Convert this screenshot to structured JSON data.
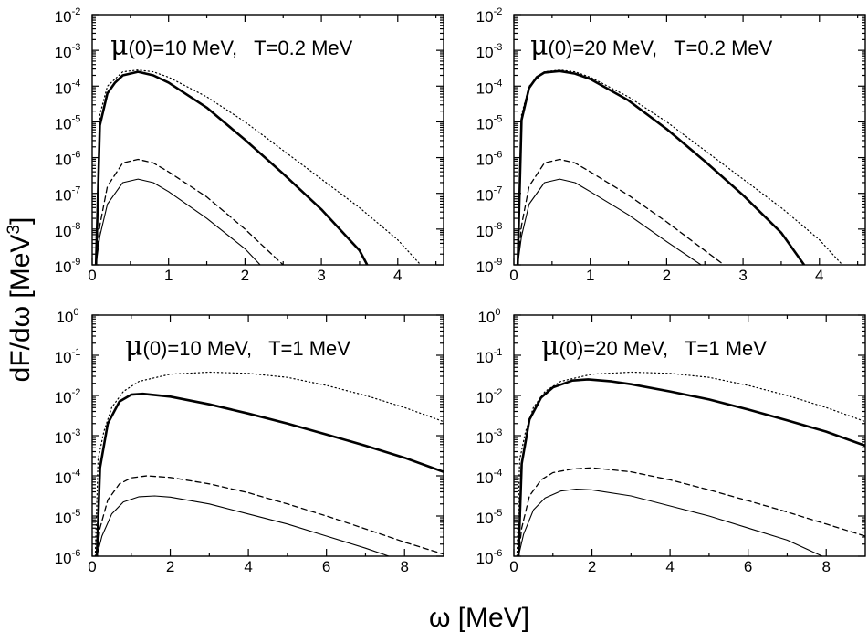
{
  "figure": {
    "ylabel_text": "dF/dω [MeV",
    "ylabel_exp": "3",
    "ylabel_close": "]",
    "xlabel_text": "ω [MeV]"
  },
  "chart_data": [
    {
      "type": "line",
      "id": "top-left",
      "title_mu": "μ",
      "title_rest": "(0)=10 MeV,   T=0.2 MeV",
      "yscale": "log",
      "xlim": [
        0,
        4.6
      ],
      "ylim_exp": [
        -9,
        -2
      ],
      "x_ticks": [
        "0",
        "1",
        "2",
        "3",
        "4"
      ],
      "y_ticks": [
        {
          "base": "10",
          "exp": "-9"
        },
        {
          "base": "10",
          "exp": "-8"
        },
        {
          "base": "10",
          "exp": "-7"
        },
        {
          "base": "10",
          "exp": "-6"
        },
        {
          "base": "10",
          "exp": "-5"
        },
        {
          "base": "10",
          "exp": "-4"
        },
        {
          "base": "10",
          "exp": "-3"
        },
        {
          "base": "10",
          "exp": "-2"
        }
      ],
      "series": [
        {
          "name": "dotted",
          "style": "dotted",
          "points": [
            [
              0.05,
              -9
            ],
            [
              0.1,
              -4.8
            ],
            [
              0.2,
              -4.0
            ],
            [
              0.4,
              -3.6
            ],
            [
              0.6,
              -3.55
            ],
            [
              0.8,
              -3.6
            ],
            [
              1.0,
              -3.75
            ],
            [
              1.5,
              -4.3
            ],
            [
              2.0,
              -5.0
            ],
            [
              2.5,
              -5.8
            ],
            [
              3.0,
              -6.6
            ],
            [
              3.5,
              -7.4
            ],
            [
              4.0,
              -8.3
            ],
            [
              4.3,
              -9.0
            ]
          ]
        },
        {
          "name": "thick",
          "style": "thick",
          "points": [
            [
              0.05,
              -9
            ],
            [
              0.1,
              -5.1
            ],
            [
              0.2,
              -4.2
            ],
            [
              0.3,
              -3.9
            ],
            [
              0.4,
              -3.7
            ],
            [
              0.6,
              -3.6
            ],
            [
              0.8,
              -3.7
            ],
            [
              1.0,
              -3.9
            ],
            [
              1.5,
              -4.6
            ],
            [
              2.0,
              -5.5
            ],
            [
              2.5,
              -6.45
            ],
            [
              3.0,
              -7.45
            ],
            [
              3.5,
              -8.6
            ],
            [
              3.6,
              -9.0
            ]
          ]
        },
        {
          "name": "dashed",
          "style": "dashed",
          "points": [
            [
              0.05,
              -9
            ],
            [
              0.1,
              -7.9
            ],
            [
              0.2,
              -6.8
            ],
            [
              0.4,
              -6.15
            ],
            [
              0.6,
              -6.05
            ],
            [
              0.8,
              -6.15
            ],
            [
              1.0,
              -6.4
            ],
            [
              1.5,
              -7.1
            ],
            [
              2.0,
              -8.0
            ],
            [
              2.5,
              -9.0
            ]
          ]
        },
        {
          "name": "thin",
          "style": "thin",
          "points": [
            [
              0.05,
              -9
            ],
            [
              0.1,
              -8.2
            ],
            [
              0.2,
              -7.3
            ],
            [
              0.4,
              -6.7
            ],
            [
              0.6,
              -6.6
            ],
            [
              0.8,
              -6.7
            ],
            [
              1.0,
              -6.95
            ],
            [
              1.5,
              -7.7
            ],
            [
              2.0,
              -8.55
            ],
            [
              2.2,
              -9.0
            ]
          ]
        }
      ]
    },
    {
      "type": "line",
      "id": "top-right",
      "title_mu": "μ",
      "title_rest": "(0)=20 MeV,   T=0.2 MeV",
      "yscale": "log",
      "xlim": [
        0,
        4.6
      ],
      "ylim_exp": [
        -9,
        -2
      ],
      "x_ticks": [
        "0",
        "1",
        "2",
        "3",
        "4"
      ],
      "y_ticks": [
        {
          "base": "10",
          "exp": "-9"
        },
        {
          "base": "10",
          "exp": "-8"
        },
        {
          "base": "10",
          "exp": "-7"
        },
        {
          "base": "10",
          "exp": "-6"
        },
        {
          "base": "10",
          "exp": "-5"
        },
        {
          "base": "10",
          "exp": "-4"
        },
        {
          "base": "10",
          "exp": "-3"
        },
        {
          "base": "10",
          "exp": "-2"
        }
      ],
      "series": [
        {
          "name": "dotted",
          "style": "dotted",
          "points": [
            [
              0.05,
              -9
            ],
            [
              0.1,
              -4.8
            ],
            [
              0.2,
              -4.0
            ],
            [
              0.4,
              -3.6
            ],
            [
              0.6,
              -3.55
            ],
            [
              0.8,
              -3.6
            ],
            [
              1.0,
              -3.75
            ],
            [
              1.5,
              -4.3
            ],
            [
              2.0,
              -5.0
            ],
            [
              2.5,
              -5.8
            ],
            [
              3.0,
              -6.6
            ],
            [
              3.5,
              -7.4
            ],
            [
              4.0,
              -8.3
            ],
            [
              4.3,
              -9.0
            ]
          ]
        },
        {
          "name": "thick",
          "style": "thick",
          "points": [
            [
              0.05,
              -9
            ],
            [
              0.1,
              -4.95
            ],
            [
              0.2,
              -4.05
            ],
            [
              0.3,
              -3.75
            ],
            [
              0.4,
              -3.62
            ],
            [
              0.6,
              -3.58
            ],
            [
              0.8,
              -3.65
            ],
            [
              1.0,
              -3.8
            ],
            [
              1.5,
              -4.4
            ],
            [
              2.0,
              -5.2
            ],
            [
              2.5,
              -6.1
            ],
            [
              3.0,
              -7.05
            ],
            [
              3.5,
              -8.1
            ],
            [
              3.8,
              -9.0
            ]
          ]
        },
        {
          "name": "dashed",
          "style": "dashed",
          "points": [
            [
              0.05,
              -9
            ],
            [
              0.1,
              -7.9
            ],
            [
              0.2,
              -6.8
            ],
            [
              0.4,
              -6.15
            ],
            [
              0.6,
              -6.05
            ],
            [
              0.8,
              -6.15
            ],
            [
              1.0,
              -6.4
            ],
            [
              1.5,
              -7.05
            ],
            [
              2.0,
              -7.8
            ],
            [
              2.5,
              -8.6
            ],
            [
              2.75,
              -9.0
            ]
          ]
        },
        {
          "name": "thin",
          "style": "thin",
          "points": [
            [
              0.05,
              -9
            ],
            [
              0.1,
              -8.2
            ],
            [
              0.2,
              -7.3
            ],
            [
              0.4,
              -6.7
            ],
            [
              0.6,
              -6.6
            ],
            [
              0.8,
              -6.7
            ],
            [
              1.0,
              -6.95
            ],
            [
              1.5,
              -7.6
            ],
            [
              2.0,
              -8.35
            ],
            [
              2.45,
              -9.0
            ]
          ]
        }
      ]
    },
    {
      "type": "line",
      "id": "bottom-left",
      "title_mu": "μ",
      "title_rest": "(0)=10 MeV,   T=1 MeV",
      "yscale": "log",
      "xlim": [
        0,
        9
      ],
      "ylim_exp": [
        -6,
        0
      ],
      "x_ticks": [
        "0",
        "2",
        "4",
        "6",
        "8"
      ],
      "y_ticks": [
        {
          "base": "10",
          "exp": "-6"
        },
        {
          "base": "10",
          "exp": "-5"
        },
        {
          "base": "10",
          "exp": "-4"
        },
        {
          "base": "10",
          "exp": "-3"
        },
        {
          "base": "10",
          "exp": "-2"
        },
        {
          "base": "10",
          "exp": "-1"
        },
        {
          "base": "10",
          "exp": "0"
        }
      ],
      "series": [
        {
          "name": "dotted",
          "style": "dotted",
          "points": [
            [
              0.08,
              -6
            ],
            [
              0.15,
              -3.6
            ],
            [
              0.3,
              -2.9
            ],
            [
              0.5,
              -2.3
            ],
            [
              0.8,
              -1.9
            ],
            [
              1.2,
              -1.65
            ],
            [
              2.0,
              -1.47
            ],
            [
              3.0,
              -1.42
            ],
            [
              4.0,
              -1.45
            ],
            [
              5.0,
              -1.55
            ],
            [
              6.0,
              -1.75
            ],
            [
              7.0,
              -2.0
            ],
            [
              8.0,
              -2.3
            ],
            [
              9.0,
              -2.65
            ]
          ]
        },
        {
          "name": "thick",
          "style": "thick",
          "points": [
            [
              0.12,
              -6
            ],
            [
              0.2,
              -3.8
            ],
            [
              0.4,
              -2.7
            ],
            [
              0.7,
              -2.15
            ],
            [
              1.0,
              -1.98
            ],
            [
              1.3,
              -1.96
            ],
            [
              2.0,
              -2.03
            ],
            [
              3.0,
              -2.22
            ],
            [
              4.0,
              -2.45
            ],
            [
              5.0,
              -2.7
            ],
            [
              6.0,
              -2.97
            ],
            [
              7.0,
              -3.25
            ],
            [
              8.0,
              -3.55
            ],
            [
              9.0,
              -3.9
            ]
          ]
        },
        {
          "name": "dashed",
          "style": "dashed",
          "points": [
            [
              0.12,
              -6
            ],
            [
              0.2,
              -5.3
            ],
            [
              0.4,
              -4.6
            ],
            [
              0.7,
              -4.2
            ],
            [
              1.0,
              -4.05
            ],
            [
              1.4,
              -4.0
            ],
            [
              2.0,
              -4.04
            ],
            [
              3.0,
              -4.2
            ],
            [
              4.0,
              -4.42
            ],
            [
              5.0,
              -4.7
            ],
            [
              6.0,
              -5.0
            ],
            [
              7.0,
              -5.32
            ],
            [
              8.0,
              -5.65
            ],
            [
              9.0,
              -5.95
            ]
          ]
        },
        {
          "name": "thin",
          "style": "thin",
          "points": [
            [
              0.12,
              -6
            ],
            [
              0.25,
              -5.5
            ],
            [
              0.5,
              -4.95
            ],
            [
              0.8,
              -4.65
            ],
            [
              1.2,
              -4.52
            ],
            [
              1.6,
              -4.5
            ],
            [
              2.0,
              -4.53
            ],
            [
              3.0,
              -4.7
            ],
            [
              4.0,
              -4.95
            ],
            [
              5.0,
              -5.2
            ],
            [
              6.0,
              -5.5
            ],
            [
              7.0,
              -5.8
            ],
            [
              7.6,
              -6.0
            ]
          ]
        }
      ]
    },
    {
      "type": "line",
      "id": "bottom-right",
      "title_mu": "μ",
      "title_rest": "(0)=20 MeV,   T=1 MeV",
      "yscale": "log",
      "xlim": [
        0,
        9
      ],
      "ylim_exp": [
        -6,
        0
      ],
      "x_ticks": [
        "0",
        "2",
        "4",
        "6",
        "8"
      ],
      "y_ticks": [
        {
          "base": "10",
          "exp": "-6"
        },
        {
          "base": "10",
          "exp": "-5"
        },
        {
          "base": "10",
          "exp": "-4"
        },
        {
          "base": "10",
          "exp": "-3"
        },
        {
          "base": "10",
          "exp": "-2"
        },
        {
          "base": "10",
          "exp": "-1"
        },
        {
          "base": "10",
          "exp": "0"
        }
      ],
      "series": [
        {
          "name": "dotted",
          "style": "dotted",
          "points": [
            [
              0.08,
              -6
            ],
            [
              0.15,
              -3.6
            ],
            [
              0.3,
              -2.9
            ],
            [
              0.5,
              -2.3
            ],
            [
              0.8,
              -1.9
            ],
            [
              1.2,
              -1.65
            ],
            [
              2.0,
              -1.47
            ],
            [
              3.0,
              -1.42
            ],
            [
              4.0,
              -1.45
            ],
            [
              5.0,
              -1.55
            ],
            [
              6.0,
              -1.75
            ],
            [
              7.0,
              -2.0
            ],
            [
              8.0,
              -2.3
            ],
            [
              9.0,
              -2.65
            ]
          ]
        },
        {
          "name": "thick",
          "style": "thick",
          "points": [
            [
              0.12,
              -6
            ],
            [
              0.2,
              -3.7
            ],
            [
              0.4,
              -2.6
            ],
            [
              0.7,
              -2.05
            ],
            [
              1.0,
              -1.8
            ],
            [
              1.5,
              -1.63
            ],
            [
              1.9,
              -1.6
            ],
            [
              2.5,
              -1.65
            ],
            [
              3.0,
              -1.72
            ],
            [
              4.0,
              -1.9
            ],
            [
              5.0,
              -2.1
            ],
            [
              6.0,
              -2.35
            ],
            [
              7.0,
              -2.62
            ],
            [
              8.0,
              -2.9
            ],
            [
              9.0,
              -3.25
            ]
          ]
        },
        {
          "name": "dashed",
          "style": "dashed",
          "points": [
            [
              0.12,
              -6
            ],
            [
              0.2,
              -5.3
            ],
            [
              0.4,
              -4.5
            ],
            [
              0.7,
              -4.1
            ],
            [
              1.0,
              -3.92
            ],
            [
              1.5,
              -3.83
            ],
            [
              2.0,
              -3.8
            ],
            [
              3.0,
              -3.9
            ],
            [
              4.0,
              -4.1
            ],
            [
              5.0,
              -4.35
            ],
            [
              6.0,
              -4.62
            ],
            [
              7.0,
              -4.9
            ],
            [
              8.0,
              -5.2
            ],
            [
              9.0,
              -5.5
            ]
          ]
        },
        {
          "name": "thin",
          "style": "thin",
          "points": [
            [
              0.12,
              -6
            ],
            [
              0.25,
              -5.45
            ],
            [
              0.5,
              -4.85
            ],
            [
              0.8,
              -4.55
            ],
            [
              1.2,
              -4.38
            ],
            [
              1.6,
              -4.33
            ],
            [
              2.0,
              -4.35
            ],
            [
              3.0,
              -4.5
            ],
            [
              4.0,
              -4.75
            ],
            [
              5.0,
              -5.0
            ],
            [
              6.0,
              -5.3
            ],
            [
              7.0,
              -5.6
            ],
            [
              7.9,
              -6.0
            ]
          ]
        }
      ]
    }
  ]
}
